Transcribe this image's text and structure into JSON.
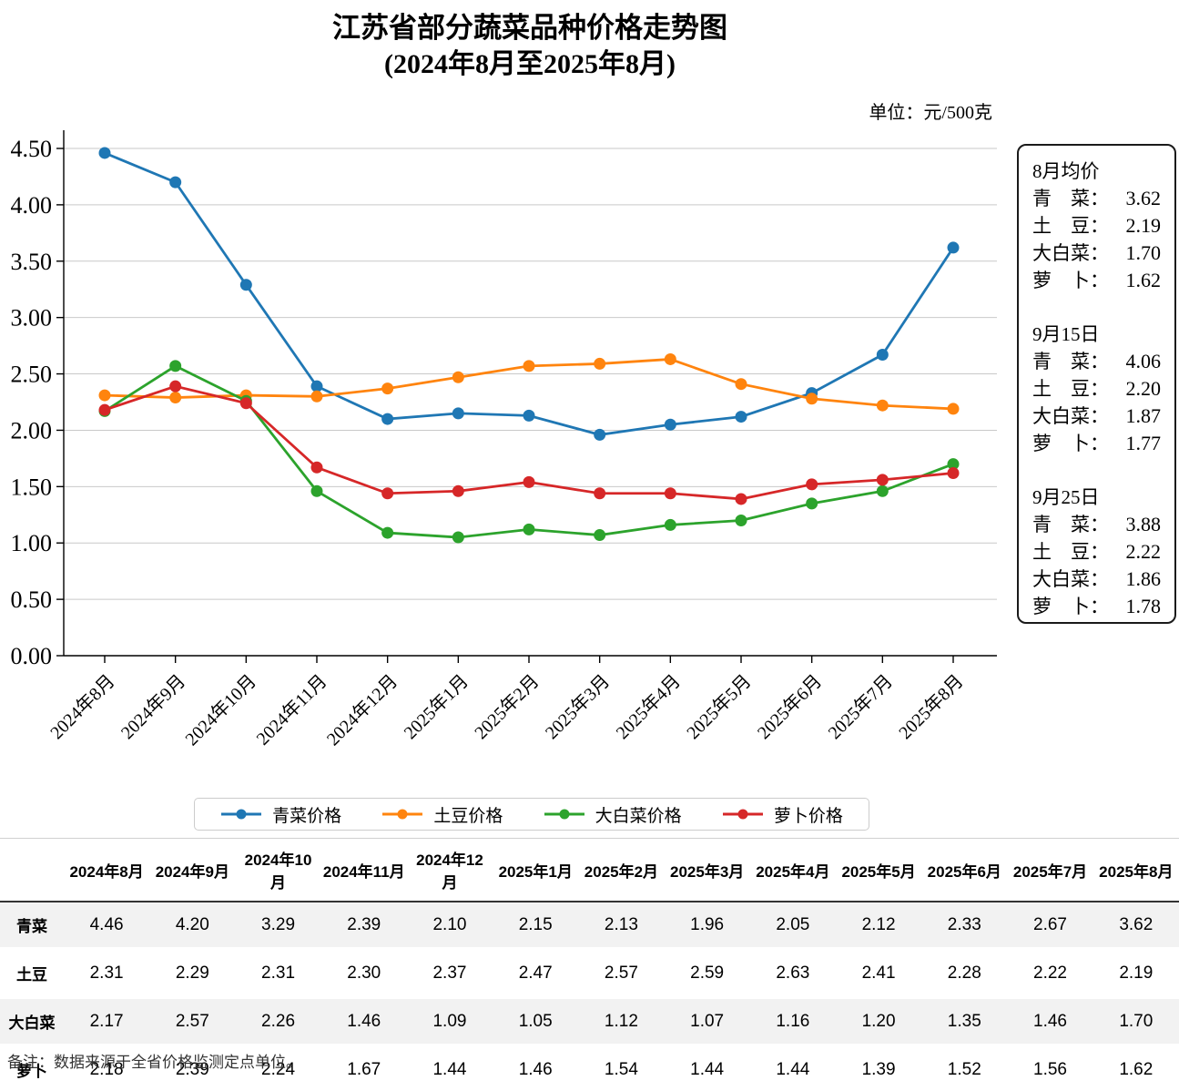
{
  "title": {
    "line1": "江苏省部分蔬菜品种价格走势图",
    "line2": "(2024年8月至2025年8月)"
  },
  "unit_label": "单位：元/500克",
  "chart_data": {
    "type": "line",
    "title": "江苏省部分蔬菜品种价格走势图",
    "subtitle": "(2024年8月至2025年8月)",
    "unit": "元/500克",
    "categories": [
      "2024年8月",
      "2024年9月",
      "2024年10月",
      "2024年11月",
      "2024年12月",
      "2025年1月",
      "2025年2月",
      "2025年3月",
      "2025年4月",
      "2025年5月",
      "2025年6月",
      "2025年7月",
      "2025年8月"
    ],
    "series": [
      {
        "name": "青菜价格",
        "short_name": "青菜",
        "color": "#1f77b4",
        "values": [
          4.46,
          4.2,
          3.29,
          2.39,
          2.1,
          2.15,
          2.13,
          1.96,
          2.05,
          2.12,
          2.33,
          2.67,
          3.62
        ]
      },
      {
        "name": "土豆价格",
        "short_name": "土豆",
        "color": "#ff840e",
        "values": [
          2.31,
          2.29,
          2.31,
          2.3,
          2.37,
          2.47,
          2.57,
          2.59,
          2.63,
          2.41,
          2.28,
          2.22,
          2.19
        ]
      },
      {
        "name": "大白菜价格",
        "short_name": "大白菜",
        "color": "#2ca32c",
        "values": [
          2.17,
          2.57,
          2.26,
          1.46,
          1.09,
          1.05,
          1.12,
          1.07,
          1.16,
          1.2,
          1.35,
          1.46,
          1.7
        ]
      },
      {
        "name": "萝卜价格",
        "short_name": "萝卜",
        "color": "#d62728",
        "values": [
          2.18,
          2.39,
          2.24,
          1.67,
          1.44,
          1.46,
          1.54,
          1.44,
          1.44,
          1.39,
          1.52,
          1.56,
          1.62
        ]
      }
    ],
    "ylim": [
      0,
      4.5
    ],
    "ytick_step": 0.5,
    "grid": true,
    "legend_position": "bottom"
  },
  "info_box": {
    "sections": [
      {
        "heading": "8月均价",
        "rows": [
          {
            "label": "青　菜：",
            "value": "3.62"
          },
          {
            "label": "土　豆：",
            "value": "2.19"
          },
          {
            "label": "大白菜：",
            "value": "1.70"
          },
          {
            "label": "萝　卜：",
            "value": "1.62"
          }
        ]
      },
      {
        "heading": "9月15日",
        "rows": [
          {
            "label": "青　菜：",
            "value": "4.06"
          },
          {
            "label": "土　豆：",
            "value": "2.20"
          },
          {
            "label": "大白菜：",
            "value": "1.87"
          },
          {
            "label": "萝　卜：",
            "value": "1.77"
          }
        ]
      },
      {
        "heading": "9月25日",
        "rows": [
          {
            "label": "青　菜：",
            "value": "3.88"
          },
          {
            "label": "土　豆：",
            "value": "2.22"
          },
          {
            "label": "大白菜：",
            "value": "1.86"
          },
          {
            "label": "萝　卜：",
            "value": "1.78"
          }
        ]
      }
    ]
  },
  "table": {
    "columns": [
      "",
      "2024年8月",
      "2024年9月",
      "2024年10月",
      "2024年11月",
      "2024年12月",
      "2025年1月",
      "2025年2月",
      "2025年3月",
      "2025年4月",
      "2025年5月",
      "2025年6月",
      "2025年7月",
      "2025年8月"
    ],
    "rows": [
      {
        "label": "青菜",
        "values": [
          "4.46",
          "4.20",
          "3.29",
          "2.39",
          "2.10",
          "2.15",
          "2.13",
          "1.96",
          "2.05",
          "2.12",
          "2.33",
          "2.67",
          "3.62"
        ]
      },
      {
        "label": "土豆",
        "values": [
          "2.31",
          "2.29",
          "2.31",
          "2.30",
          "2.37",
          "2.47",
          "2.57",
          "2.59",
          "2.63",
          "2.41",
          "2.28",
          "2.22",
          "2.19"
        ]
      },
      {
        "label": "大白菜",
        "values": [
          "2.17",
          "2.57",
          "2.26",
          "1.46",
          "1.09",
          "1.05",
          "1.12",
          "1.07",
          "1.16",
          "1.20",
          "1.35",
          "1.46",
          "1.70"
        ]
      },
      {
        "label": "萝卜",
        "values": [
          "2.18",
          "2.39",
          "2.24",
          "1.67",
          "1.44",
          "1.46",
          "1.54",
          "1.44",
          "1.44",
          "1.39",
          "1.52",
          "1.56",
          "1.62"
        ]
      }
    ]
  },
  "footer_note": "备注：数据来源于全省价格监测定点单位。"
}
